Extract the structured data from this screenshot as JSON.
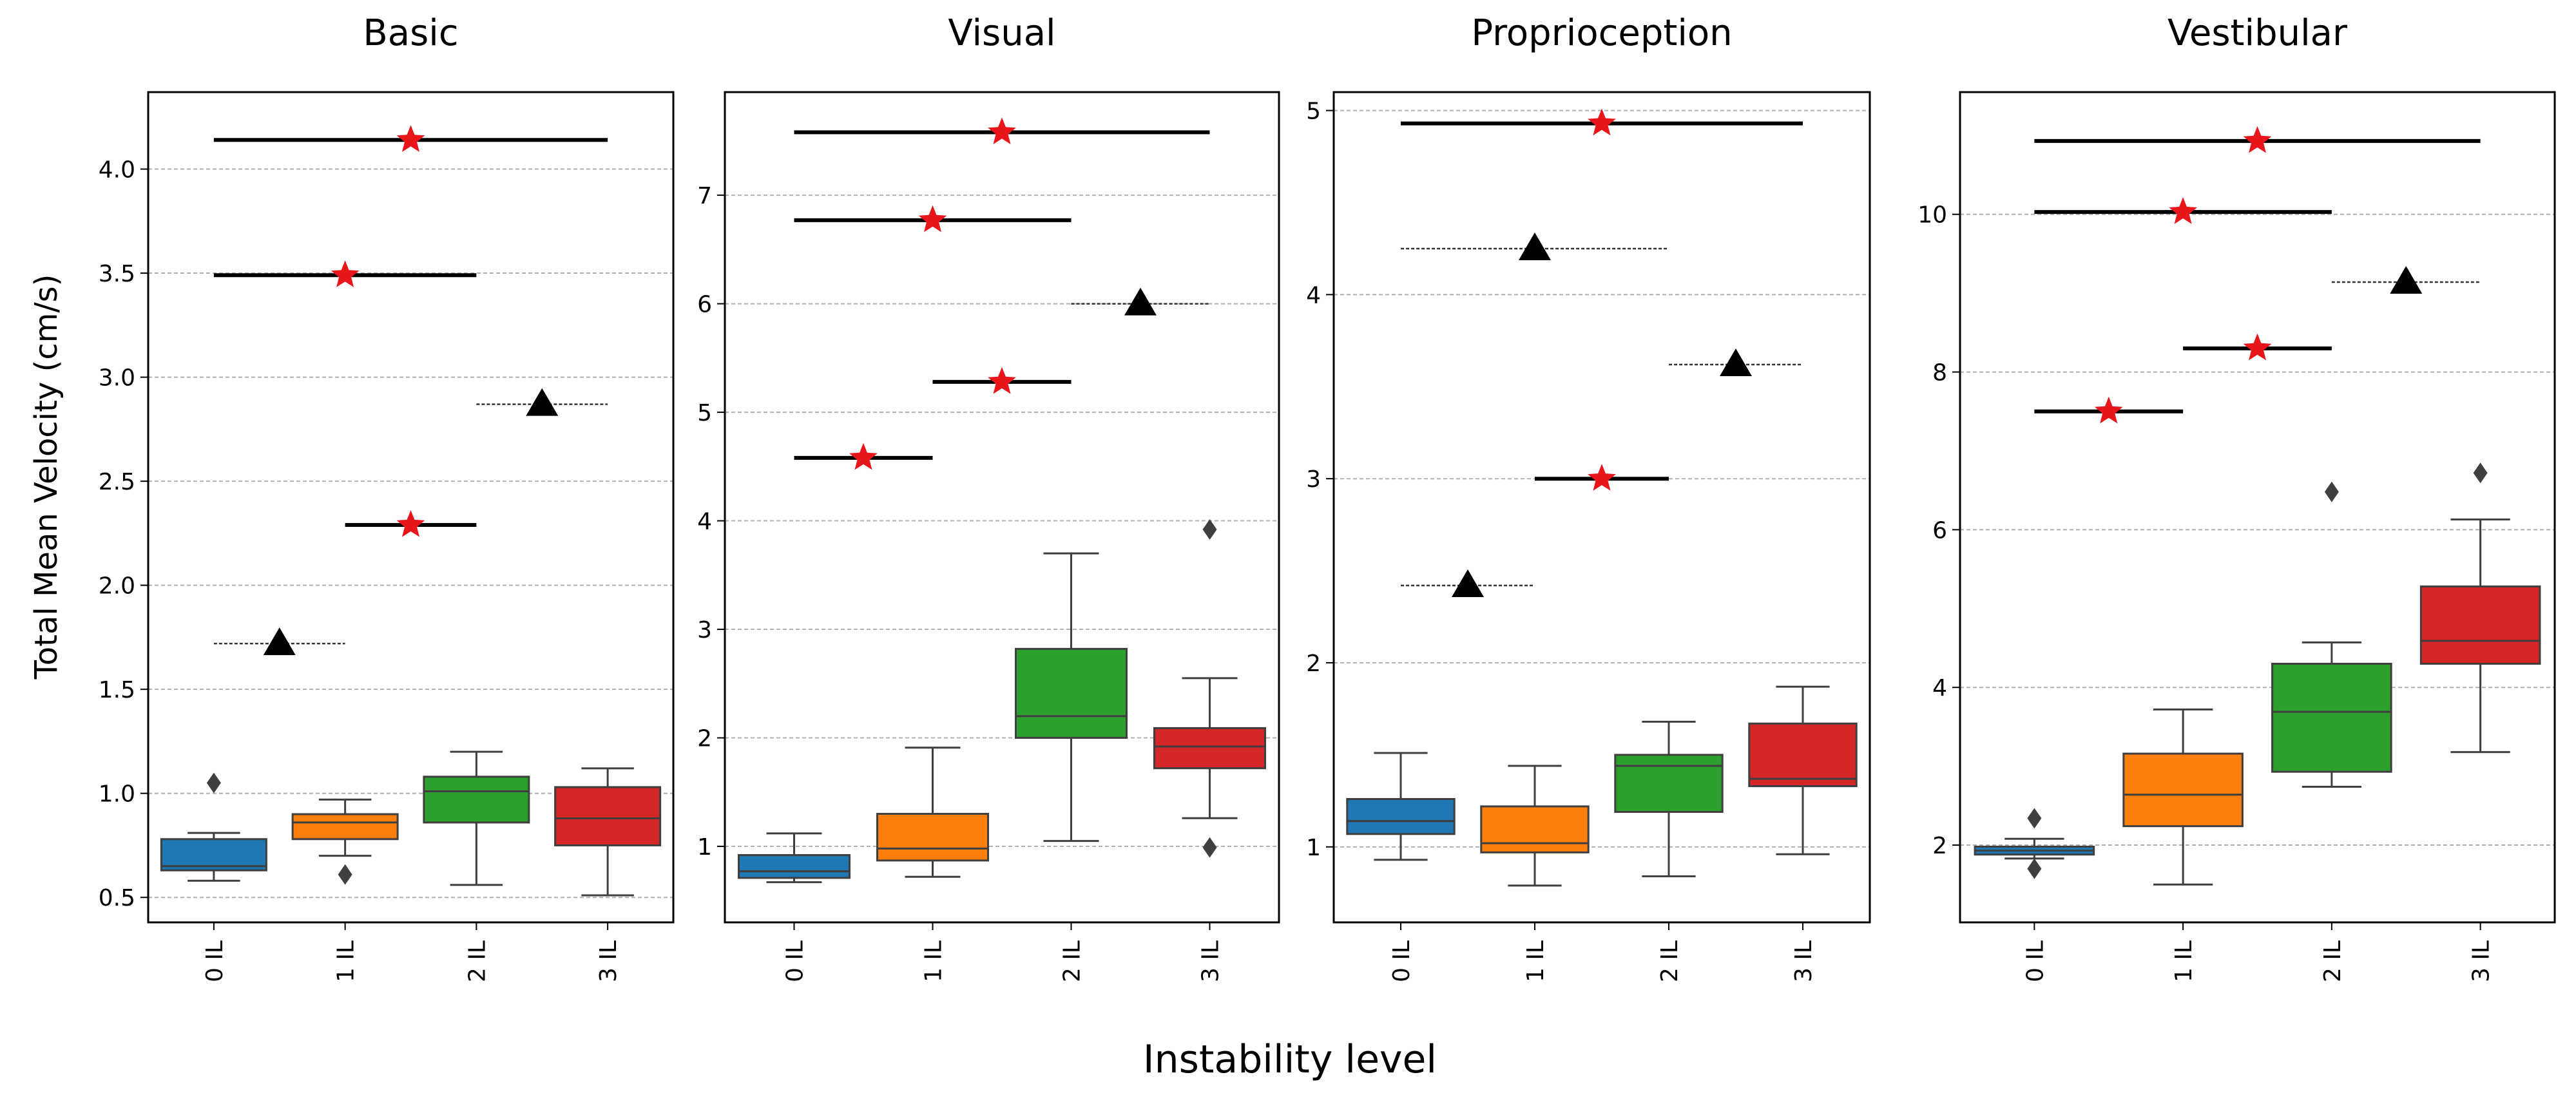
{
  "figure": {
    "ylabel": "Total Mean Velocity (cm/s)",
    "xlabel": "Instability level"
  },
  "colors": {
    "box": [
      "#1f77b4",
      "#ff7f0e",
      "#2ca02c",
      "#d62728"
    ],
    "star": "#e8161b",
    "triangle": "#000000",
    "grid": "#b0b0b0"
  },
  "chart_data": [
    {
      "type": "box",
      "title": "Basic",
      "categories": [
        "0 IL",
        "1 IL",
        "2 IL",
        "3 IL"
      ],
      "ylim": [
        0.38,
        4.37
      ],
      "yticks": [
        0.5,
        1.0,
        1.5,
        2.0,
        2.5,
        3.0,
        3.5,
        4.0
      ],
      "ytick_labels": [
        "0.5",
        "1.0",
        "1.5",
        "2.0",
        "2.5",
        "3.0",
        "3.5",
        "4.0"
      ],
      "grid": true,
      "boxes": [
        {
          "min": 0.58,
          "q1": 0.63,
          "median": 0.65,
          "q3": 0.78,
          "max": 0.81,
          "outliers": [
            1.05
          ]
        },
        {
          "min": 0.7,
          "q1": 0.78,
          "median": 0.86,
          "q3": 0.9,
          "max": 0.97,
          "outliers": [
            0.61
          ]
        },
        {
          "min": 0.56,
          "q1": 0.86,
          "median": 1.01,
          "q3": 1.08,
          "max": 1.2,
          "outliers": []
        },
        {
          "min": 0.51,
          "q1": 0.75,
          "median": 0.88,
          "q3": 1.03,
          "max": 1.12,
          "outliers": []
        }
      ],
      "comparisons": [
        {
          "from": 0,
          "to": 3,
          "y": 4.14,
          "significant": true
        },
        {
          "from": 0,
          "to": 2,
          "y": 3.49,
          "significant": true
        },
        {
          "from": 1,
          "to": 2,
          "y": 2.29,
          "significant": true
        },
        {
          "from": 0,
          "to": 1,
          "y": 1.72,
          "significant": false
        },
        {
          "from": 2,
          "to": 3,
          "y": 2.87,
          "significant": false
        }
      ]
    },
    {
      "type": "box",
      "title": "Visual",
      "categories": [
        "0 IL",
        "1 IL",
        "2 IL",
        "3 IL"
      ],
      "ylim": [
        0.3,
        7.95
      ],
      "yticks": [
        1,
        2,
        3,
        4,
        5,
        6,
        7
      ],
      "ytick_labels": [
        "1",
        "2",
        "3",
        "4",
        "5",
        "6",
        "7"
      ],
      "grid": true,
      "boxes": [
        {
          "min": 0.67,
          "q1": 0.71,
          "median": 0.77,
          "q3": 0.92,
          "max": 1.12,
          "outliers": []
        },
        {
          "min": 0.72,
          "q1": 0.87,
          "median": 0.98,
          "q3": 1.3,
          "max": 1.91,
          "outliers": []
        },
        {
          "min": 1.05,
          "q1": 2.0,
          "median": 2.2,
          "q3": 2.82,
          "max": 3.7,
          "outliers": []
        },
        {
          "min": 1.26,
          "q1": 1.72,
          "median": 1.92,
          "q3": 2.09,
          "max": 2.55,
          "outliers": [
            3.92,
            0.99
          ]
        }
      ],
      "comparisons": [
        {
          "from": 0,
          "to": 3,
          "y": 7.58,
          "significant": true
        },
        {
          "from": 0,
          "to": 2,
          "y": 6.77,
          "significant": true
        },
        {
          "from": 1,
          "to": 2,
          "y": 5.28,
          "significant": true
        },
        {
          "from": 0,
          "to": 1,
          "y": 4.58,
          "significant": true
        },
        {
          "from": 2,
          "to": 3,
          "y": 6.0,
          "significant": false
        }
      ]
    },
    {
      "type": "box",
      "title": "Proprioception",
      "categories": [
        "0 IL",
        "1 IL",
        "2 IL",
        "3 IL"
      ],
      "ylim": [
        0.59,
        5.1
      ],
      "yticks": [
        1,
        2,
        3,
        4,
        5
      ],
      "ytick_labels": [
        "1",
        "2",
        "3",
        "4",
        "5"
      ],
      "grid": true,
      "boxes": [
        {
          "min": 0.93,
          "q1": 1.07,
          "median": 1.14,
          "q3": 1.26,
          "max": 1.51,
          "outliers": []
        },
        {
          "min": 0.79,
          "q1": 0.97,
          "median": 1.02,
          "q3": 1.22,
          "max": 1.44,
          "outliers": []
        },
        {
          "min": 0.84,
          "q1": 1.19,
          "median": 1.44,
          "q3": 1.5,
          "max": 1.68,
          "outliers": []
        },
        {
          "min": 0.96,
          "q1": 1.33,
          "median": 1.37,
          "q3": 1.67,
          "max": 1.87,
          "outliers": []
        }
      ],
      "comparisons": [
        {
          "from": 0,
          "to": 3,
          "y": 4.93,
          "significant": true
        },
        {
          "from": 1,
          "to": 2,
          "y": 3.0,
          "significant": true
        },
        {
          "from": 0,
          "to": 2,
          "y": 4.25,
          "significant": false
        },
        {
          "from": 0,
          "to": 1,
          "y": 2.42,
          "significant": false
        },
        {
          "from": 2,
          "to": 3,
          "y": 3.62,
          "significant": false
        }
      ]
    },
    {
      "type": "box",
      "title": "Vestibular",
      "categories": [
        "0 IL",
        "1 IL",
        "2 IL",
        "3 IL"
      ],
      "ylim": [
        1.02,
        11.55
      ],
      "yticks": [
        2,
        4,
        6,
        8,
        10
      ],
      "ytick_labels": [
        "2",
        "4",
        "6",
        "8",
        "10"
      ],
      "grid": true,
      "boxes": [
        {
          "min": 1.83,
          "q1": 1.88,
          "median": 1.93,
          "q3": 1.98,
          "max": 2.08,
          "outliers": [
            2.34,
            1.7
          ]
        },
        {
          "min": 1.5,
          "q1": 2.24,
          "median": 2.64,
          "q3": 3.16,
          "max": 3.72,
          "outliers": []
        },
        {
          "min": 2.74,
          "q1": 2.93,
          "median": 3.69,
          "q3": 4.3,
          "max": 4.57,
          "outliers": [
            6.48
          ]
        },
        {
          "min": 3.18,
          "q1": 4.3,
          "median": 4.59,
          "q3": 5.28,
          "max": 6.13,
          "outliers": [
            6.72
          ]
        }
      ],
      "comparisons": [
        {
          "from": 0,
          "to": 3,
          "y": 10.93,
          "significant": true
        },
        {
          "from": 0,
          "to": 2,
          "y": 10.03,
          "significant": true
        },
        {
          "from": 1,
          "to": 2,
          "y": 8.3,
          "significant": true
        },
        {
          "from": 0,
          "to": 1,
          "y": 7.5,
          "significant": true
        },
        {
          "from": 2,
          "to": 3,
          "y": 9.14,
          "significant": false
        }
      ]
    }
  ]
}
